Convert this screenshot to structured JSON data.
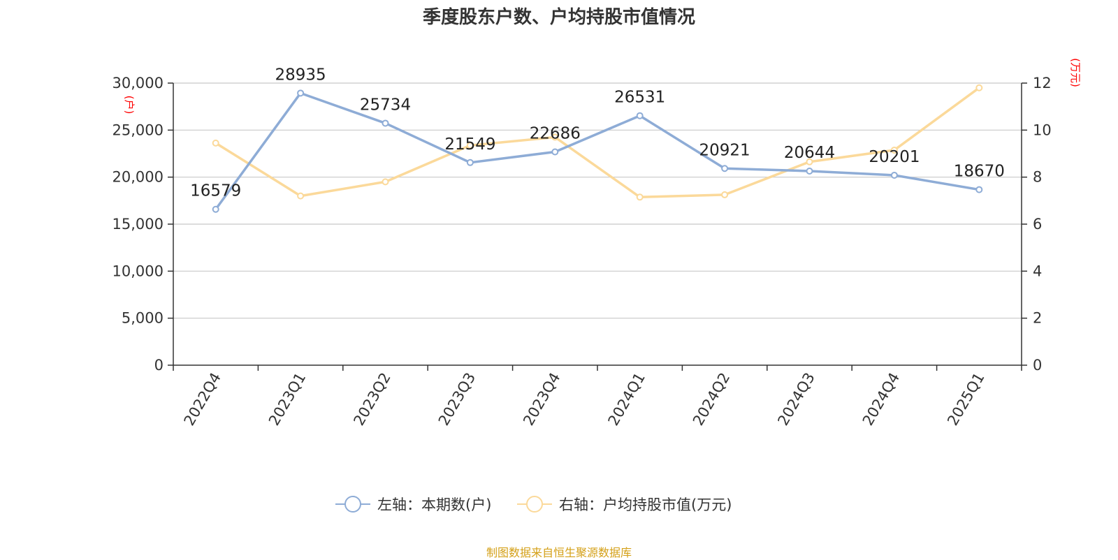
{
  "chart_data": {
    "type": "line",
    "title": "季度股东户数、户均持股市值情况",
    "categories": [
      "2022Q4",
      "2023Q1",
      "2023Q2",
      "2023Q3",
      "2023Q4",
      "2024Q1",
      "2024Q2",
      "2024Q3",
      "2024Q4",
      "2025Q1"
    ],
    "series": [
      {
        "name": "左轴：本期数(户)",
        "axis": "left",
        "color": "#8eacd6",
        "values": [
          16579,
          28935,
          25734,
          21549,
          22686,
          26531,
          20921,
          20644,
          20201,
          18670
        ],
        "data_labels": [
          "16579",
          "28935",
          "25734",
          "21549",
          "22686",
          "26531",
          "20921",
          "20644",
          "20201",
          "18670"
        ]
      },
      {
        "name": "右轴：户均持股市值(万元)",
        "axis": "right",
        "color": "#fbd99a",
        "values": [
          9.45,
          7.2,
          7.8,
          9.35,
          9.7,
          7.15,
          7.25,
          8.65,
          9.15,
          11.8
        ]
      }
    ],
    "y_left": {
      "unit": "(户)",
      "range": [
        0,
        30000
      ],
      "ticks": [
        0,
        5000,
        10000,
        15000,
        20000,
        25000,
        30000
      ],
      "tick_labels": [
        "0",
        "5,000",
        "10,000",
        "15,000",
        "20,000",
        "25,000",
        "30,000"
      ]
    },
    "y_right": {
      "unit": "(万元)",
      "range": [
        0,
        12
      ],
      "ticks": [
        0,
        2,
        4,
        6,
        8,
        10,
        12
      ],
      "tick_labels": [
        "0",
        "2",
        "4",
        "6",
        "8",
        "10",
        "12"
      ]
    },
    "grid": true,
    "legend_position": "bottom-center"
  },
  "source_text": "制图数据来自恒生聚源数据库"
}
